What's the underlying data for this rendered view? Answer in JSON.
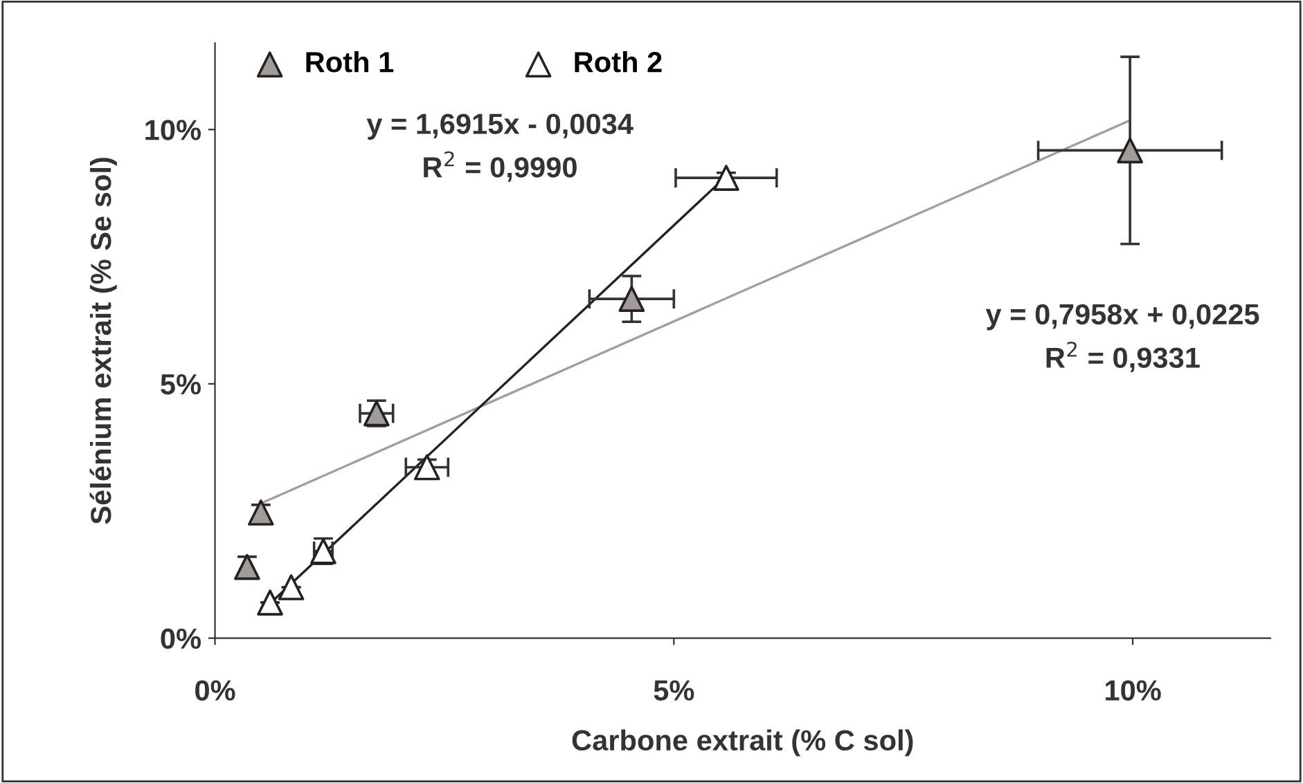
{
  "chart_data": {
    "type": "scatter",
    "xlabel": "Carbone extrait (% C sol)",
    "ylabel": "Sélénium extrait (% Se sol)",
    "xlim": [
      0,
      11.5
    ],
    "ylim": [
      0,
      11.7
    ],
    "xticks": [
      {
        "value": 0,
        "label": "0%"
      },
      {
        "value": 5,
        "label": "5%"
      },
      {
        "value": 10,
        "label": "10%"
      }
    ],
    "yticks": [
      {
        "value": 0,
        "label": "0%"
      },
      {
        "value": 5,
        "label": "5%"
      },
      {
        "value": 10,
        "label": "10%"
      }
    ],
    "grid": false,
    "legend": "top left",
    "annotations": [
      "y = 1,6915x - 0,0034",
      "R$^{2}$ = 0,9990",
      "y = 0,7958x + 0,0225",
      "R$^{2}$ = 0,9331"
    ],
    "series": [
      {
        "name": "Roth 1",
        "marker": "triangle",
        "color": "#a39b98",
        "x": [
          0.35,
          0.5,
          1.76,
          4.54,
          9.97
        ],
        "values": [
          1.4,
          2.47,
          4.42,
          6.67,
          9.59
        ],
        "errors": [
          0.2,
          0.15,
          0.25,
          0.45,
          1.84
        ],
        "xerrors": [
          null,
          null,
          0.18,
          0.46,
          1.0
        ]
      },
      {
        "name": "Roth 2",
        "marker": "triangle",
        "color": "#ffffff",
        "x": [
          0.6,
          0.83,
          1.18,
          2.31,
          5.57
        ],
        "values": [
          0.7,
          1.0,
          1.71,
          3.36,
          9.05
        ],
        "errors": [
          null,
          null,
          0.25,
          0.15,
          0.1
        ],
        "xerrors": [
          null,
          null,
          0.1,
          0.23,
          0.55
        ]
      },
      {
        "type": "line",
        "color": "#a89c98",
        "x": [
          0.5,
          9.97
        ],
        "values": [
          2.65,
          10.18
        ]
      },
      {
        "type": "line",
        "color": "#222222",
        "x": [
          0.6,
          5.57
        ],
        "values": [
          0.68,
          9.08
        ]
      }
    ]
  }
}
